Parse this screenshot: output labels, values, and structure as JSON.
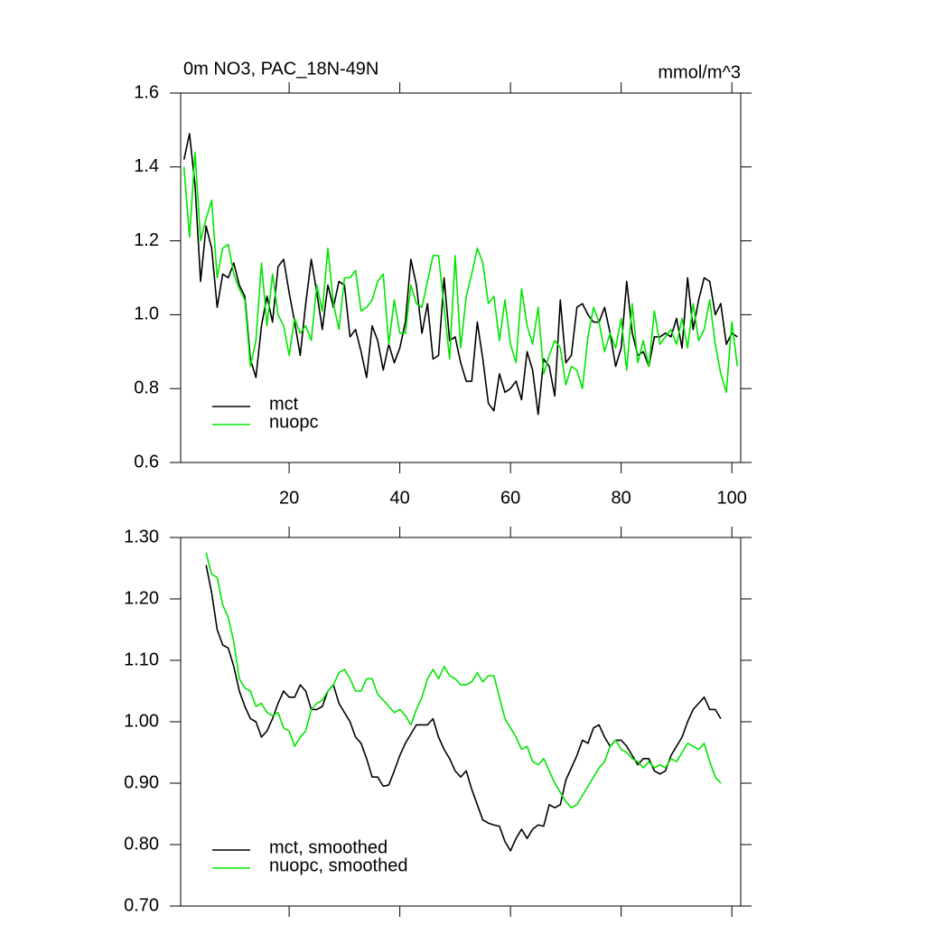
{
  "chart_data": [
    {
      "type": "line",
      "title": "0m NO3, PAC_18N-49N",
      "units": "mmol/m^3",
      "xlim": [
        0.4,
        101.6
      ],
      "xticks": [
        20,
        40,
        60,
        80,
        100
      ],
      "xtick_labels": true,
      "ylim": [
        0.6,
        1.6
      ],
      "yticks": [
        0.6,
        0.8,
        {
          "value": 1.0,
          "label": "1.0"
        },
        1.2,
        1.4,
        1.6
      ],
      "legend": "lower left",
      "x": [
        1,
        2,
        3,
        4,
        5,
        6,
        7,
        8,
        9,
        10,
        11,
        12,
        13,
        14,
        15,
        16,
        17,
        18,
        19,
        20,
        21,
        22,
        23,
        24,
        25,
        26,
        27,
        28,
        29,
        30,
        31,
        32,
        33,
        34,
        35,
        36,
        37,
        38,
        39,
        40,
        41,
        42,
        43,
        44,
        45,
        46,
        47,
        48,
        49,
        50,
        51,
        52,
        53,
        54,
        55,
        56,
        57,
        58,
        59,
        60,
        61,
        62,
        63,
        64,
        65,
        66,
        67,
        68,
        69,
        70,
        71,
        72,
        73,
        74,
        75,
        76,
        77,
        78,
        79,
        80,
        81,
        82,
        83,
        84,
        85,
        86,
        87,
        88,
        89,
        90,
        91,
        92,
        93,
        94,
        95,
        96,
        97,
        98,
        99,
        100,
        101
      ],
      "series": [
        {
          "name": "mct",
          "color": "#000000",
          "values": [
            1.42,
            1.49,
            1.35,
            1.09,
            1.24,
            1.18,
            1.02,
            1.11,
            1.1,
            1.14,
            1.08,
            1.05,
            0.88,
            0.83,
            0.97,
            1.05,
            0.98,
            1.13,
            1.15,
            1.06,
            0.98,
            0.89,
            1.03,
            1.15,
            1.06,
            0.96,
            1.08,
            1.02,
            1.09,
            1.08,
            0.94,
            0.96,
            0.9,
            0.83,
            0.97,
            0.93,
            0.85,
            0.92,
            0.87,
            0.91,
            0.98,
            1.15,
            1.08,
            0.95,
            1.03,
            0.88,
            0.89,
            1.1,
            0.93,
            0.94,
            0.87,
            0.82,
            0.82,
            0.98,
            0.88,
            0.76,
            0.74,
            0.84,
            0.79,
            0.8,
            0.82,
            0.77,
            0.9,
            0.85,
            0.73,
            0.88,
            0.86,
            0.78,
            1.04,
            0.87,
            0.89,
            1.02,
            1.03,
            1.0,
            0.98,
            0.98,
            1.02,
            0.95,
            0.86,
            0.91,
            1.09,
            0.95,
            0.89,
            0.9,
            0.86,
            0.94,
            0.94,
            0.95,
            0.94,
            0.99,
            0.91,
            1.1,
            0.96,
            1.04,
            1.1,
            1.09,
            1.0,
            1.03,
            0.92,
            0.95,
            0.94
          ]
        },
        {
          "name": "nuopc",
          "color": "#00e600",
          "values": [
            1.4,
            1.21,
            1.44,
            1.2,
            1.26,
            1.31,
            1.1,
            1.18,
            1.19,
            1.11,
            1.07,
            1.04,
            0.86,
            0.93,
            1.14,
            0.97,
            1.11,
            1.0,
            0.97,
            0.89,
            0.99,
            0.95,
            0.97,
            0.93,
            1.08,
            1.01,
            1.18,
            1.03,
            0.96,
            1.1,
            1.1,
            1.12,
            1.01,
            1.02,
            1.04,
            1.09,
            1.11,
            0.92,
            1.04,
            0.95,
            0.95,
            1.08,
            1.03,
            1.02,
            1.09,
            1.16,
            1.16,
            1.02,
            0.88,
            1.16,
            0.91,
            1.05,
            1.11,
            1.18,
            1.14,
            1.03,
            1.05,
            0.93,
            1.04,
            0.92,
            0.87,
            1.07,
            0.97,
            0.92,
            1.02,
            0.84,
            0.89,
            0.93,
            0.91,
            0.81,
            0.86,
            0.85,
            0.8,
            0.94,
            1.02,
            0.98,
            0.9,
            0.95,
            0.91,
            0.99,
            0.85,
            1.03,
            0.87,
            0.93,
            0.86,
            1.01,
            0.92,
            0.94,
            0.96,
            0.92,
            0.99,
            0.91,
            1.03,
            0.93,
            0.96,
            1.04,
            0.92,
            0.84,
            0.79,
            0.98,
            0.86
          ]
        }
      ]
    },
    {
      "type": "line",
      "xlim": [
        0.4,
        101.6
      ],
      "xticks": [
        20,
        40,
        60,
        80,
        100
      ],
      "xtick_labels": false,
      "ylim": [
        0.7,
        1.3
      ],
      "yticks": [
        {
          "value": 0.7,
          "label": "0.70"
        },
        {
          "value": 0.8,
          "label": "0.80"
        },
        {
          "value": 0.9,
          "label": "0.90"
        },
        {
          "value": 1.0,
          "label": "1.00"
        },
        {
          "value": 1.1,
          "label": "1.10"
        },
        {
          "value": 1.2,
          "label": "1.20"
        },
        {
          "value": 1.3,
          "label": "1.30"
        }
      ],
      "legend": "lower left",
      "x": [
        5,
        6,
        7,
        8,
        9,
        10,
        11,
        12,
        13,
        14,
        15,
        16,
        17,
        18,
        19,
        20,
        21,
        22,
        23,
        24,
        25,
        26,
        27,
        28,
        29,
        30,
        31,
        32,
        33,
        34,
        35,
        36,
        37,
        38,
        39,
        40,
        41,
        42,
        43,
        44,
        45,
        46,
        47,
        48,
        49,
        50,
        51,
        52,
        53,
        54,
        55,
        56,
        57,
        58,
        59,
        60,
        61,
        62,
        63,
        64,
        65,
        66,
        67,
        68,
        69,
        70,
        71,
        72,
        73,
        74,
        75,
        76,
        77,
        78,
        79,
        80,
        81,
        82,
        83,
        84,
        85,
        86,
        87,
        88,
        89,
        90,
        91,
        92,
        93,
        94,
        95,
        96,
        97,
        98
      ],
      "series": [
        {
          "name": "mct, smoothed",
          "color": "#000000",
          "values": [
            1.255,
            1.21,
            1.15,
            1.125,
            1.12,
            1.09,
            1.05,
            1.025,
            1.005,
            1.0,
            0.975,
            0.985,
            1.005,
            1.03,
            1.05,
            1.04,
            1.04,
            1.06,
            1.05,
            1.02,
            1.02,
            1.025,
            1.05,
            1.06,
            1.03,
            1.015,
            1.0,
            0.975,
            0.965,
            0.94,
            0.91,
            0.91,
            0.895,
            0.897,
            0.92,
            0.945,
            0.965,
            0.98,
            0.995,
            0.995,
            0.995,
            1.005,
            0.975,
            0.955,
            0.94,
            0.92,
            0.91,
            0.92,
            0.89,
            0.865,
            0.84,
            0.835,
            0.832,
            0.83,
            0.805,
            0.79,
            0.81,
            0.825,
            0.81,
            0.825,
            0.832,
            0.83,
            0.865,
            0.86,
            0.865,
            0.905,
            0.925,
            0.945,
            0.97,
            0.965,
            0.99,
            0.995,
            0.975,
            0.96,
            0.97,
            0.97,
            0.96,
            0.945,
            0.93,
            0.94,
            0.94,
            0.92,
            0.915,
            0.92,
            0.945,
            0.96,
            0.975,
            1.0,
            1.02,
            1.03,
            1.04,
            1.02,
            1.02,
            1.005
          ]
        },
        {
          "name": "nuopc, smoothed",
          "color": "#00e600",
          "values": [
            1.275,
            1.24,
            1.235,
            1.19,
            1.17,
            1.13,
            1.07,
            1.055,
            1.05,
            1.025,
            1.03,
            1.015,
            1.01,
            1.015,
            0.99,
            0.985,
            0.96,
            0.975,
            0.985,
            1.02,
            1.03,
            1.035,
            1.05,
            1.06,
            1.08,
            1.085,
            1.07,
            1.05,
            1.05,
            1.07,
            1.07,
            1.045,
            1.035,
            1.025,
            1.015,
            1.02,
            1.01,
            0.995,
            1.02,
            1.04,
            1.07,
            1.085,
            1.07,
            1.09,
            1.075,
            1.07,
            1.06,
            1.06,
            1.065,
            1.08,
            1.065,
            1.075,
            1.075,
            1.04,
            1.005,
            0.99,
            0.975,
            0.955,
            0.96,
            0.935,
            0.93,
            0.94,
            0.92,
            0.9,
            0.885,
            0.87,
            0.86,
            0.865,
            0.88,
            0.895,
            0.91,
            0.925,
            0.935,
            0.96,
            0.97,
            0.955,
            0.95,
            0.94,
            0.935,
            0.925,
            0.935,
            0.925,
            0.93,
            0.925,
            0.94,
            0.935,
            0.95,
            0.965,
            0.96,
            0.955,
            0.965,
            0.935,
            0.91,
            0.9
          ]
        }
      ]
    }
  ]
}
